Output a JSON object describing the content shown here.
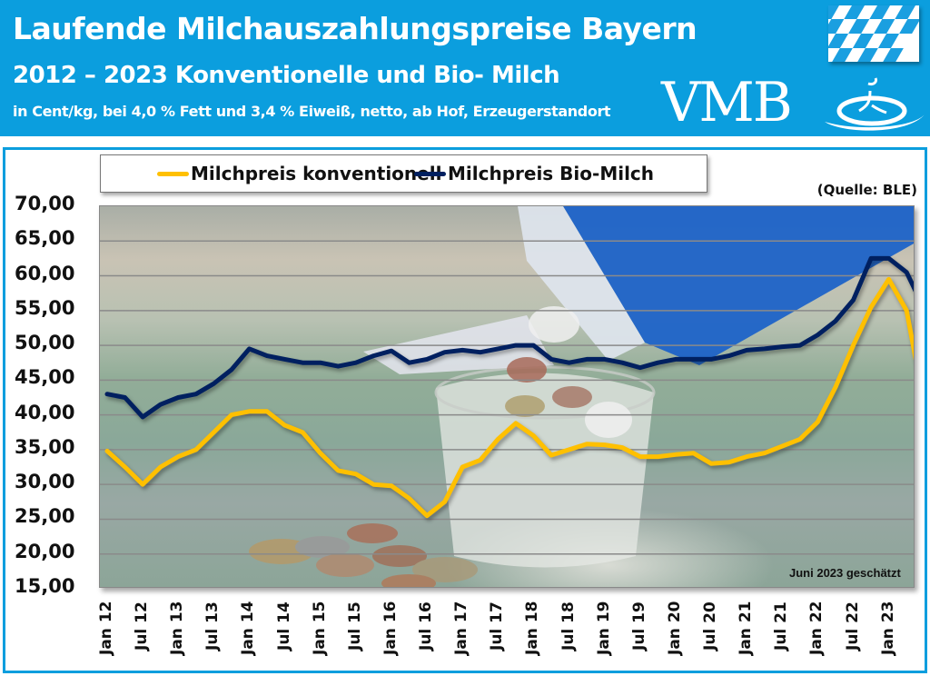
{
  "header": {
    "title": "Laufende Milchauszahlungspreise Bayern",
    "subtitle": "2012 – 2023 Konventionelle und Bio- Milch",
    "units_note": "in Cent/kg, bei 4,0 % Fett und 3,4 % Eiweiß, netto, ab Hof, Erzeugerstandort",
    "logo_text": "VMB",
    "flag": "bavarian-flag-icon"
  },
  "source": "(Quelle: BLE)",
  "footnote": "Juni 2023 geschätzt",
  "colors": {
    "header_bg": "#0b9ede",
    "conventional": "#ffc000",
    "organic": "#002060",
    "frame": "#0b9ede"
  },
  "legend": [
    {
      "label": "Milchpreis konventionell",
      "color": "#ffc000"
    },
    {
      "label": "Milchpreis Bio-Milch",
      "color": "#002060"
    }
  ],
  "y_ticks": [
    "70,00",
    "65,00",
    "60,00",
    "55,00",
    "50,00",
    "45,00",
    "40,00",
    "35,00",
    "30,00",
    "25,00",
    "20,00",
    "15,00"
  ],
  "x_ticks": [
    "Jan 12",
    "Jul 12",
    "Jan 13",
    "Jul 13",
    "Jan 14",
    "Jul 14",
    "Jan 15",
    "Jul 15",
    "Jan 16",
    "Jul 16",
    "Jan 17",
    "Jul 17",
    "Jan 18",
    "Jul 18",
    "Jan 19",
    "Jul 19",
    "Jan 20",
    "Jul 20",
    "Jan 21",
    "Jul 21",
    "Jan 22",
    "Jul 22",
    "Jan 23"
  ],
  "chart_data": {
    "type": "line",
    "title": "Laufende Milchauszahlungspreise Bayern 2012 – 2023 Konventionelle und Bio- Milch",
    "subtitle": "in Cent/kg, bei 4,0 % Fett und 3,4 % Eiweiß, netto, ab Hof, Erzeugerstandort",
    "xlabel": "",
    "ylabel": "Cent/kg",
    "ylim": [
      15,
      70
    ],
    "grid": true,
    "legend_position": "top",
    "x_start": "Jan 12",
    "x_end": "Jun 23",
    "x_step": "quarterly",
    "x": [
      "Jan 12",
      "Apr 12",
      "Jul 12",
      "Oct 12",
      "Jan 13",
      "Apr 13",
      "Jul 13",
      "Oct 13",
      "Jan 14",
      "Apr 14",
      "Jul 14",
      "Oct 14",
      "Jan 15",
      "Apr 15",
      "Jul 15",
      "Oct 15",
      "Jan 16",
      "Apr 16",
      "Jul 16",
      "Oct 16",
      "Jan 17",
      "Apr 17",
      "Jul 17",
      "Oct 17",
      "Jan 18",
      "Apr 18",
      "Jul 18",
      "Oct 18",
      "Jan 19",
      "Apr 19",
      "Jul 19",
      "Oct 19",
      "Jan 20",
      "Apr 20",
      "Jul 20",
      "Oct 20",
      "Jan 21",
      "Apr 21",
      "Jul 21",
      "Oct 21",
      "Jan 22",
      "Apr 22",
      "Jul 22",
      "Oct 22",
      "Jan 23",
      "Apr 23",
      "Jun 23"
    ],
    "series": [
      {
        "name": "Milchpreis konventionell",
        "color": "#ffc000",
        "values": [
          34.8,
          32.5,
          30.0,
          32.5,
          34.0,
          35.0,
          37.5,
          40.0,
          40.5,
          40.5,
          38.5,
          37.5,
          34.5,
          32.0,
          31.5,
          30.0,
          29.8,
          28.0,
          25.5,
          27.5,
          32.5,
          33.5,
          36.5,
          38.8,
          37.0,
          34.2,
          35.0,
          35.8,
          35.7,
          35.3,
          34.0,
          34.0,
          34.3,
          34.5,
          33.0,
          33.2,
          34.0,
          34.5,
          35.5,
          36.5,
          39.0,
          44.0,
          50.0,
          55.5,
          59.5,
          55.0,
          46.0
        ]
      },
      {
        "name": "Milchpreis Bio-Milch",
        "color": "#002060",
        "values": [
          43.0,
          42.5,
          39.7,
          41.5,
          42.5,
          43.0,
          44.5,
          46.5,
          49.5,
          48.5,
          48.0,
          47.5,
          47.5,
          47.0,
          47.5,
          48.5,
          49.2,
          47.5,
          48.0,
          49.0,
          49.3,
          49.0,
          49.5,
          50.0,
          50.0,
          48.0,
          47.5,
          48.0,
          48.0,
          47.5,
          46.8,
          47.5,
          48.0,
          48.0,
          48.0,
          48.5,
          49.3,
          49.5,
          49.8,
          50.0,
          51.5,
          53.5,
          56.5,
          62.5,
          62.5,
          60.5,
          57.0
        ]
      }
    ]
  }
}
